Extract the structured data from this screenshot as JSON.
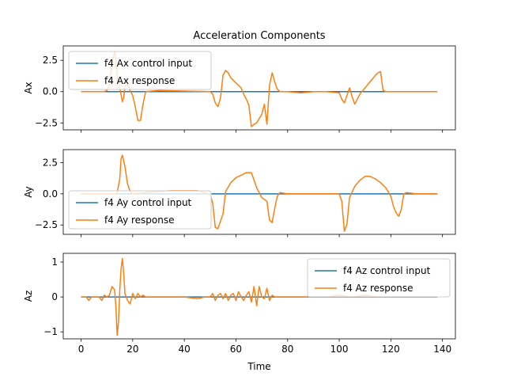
{
  "chart_data": {
    "type": "line",
    "title": "Acceleration Components",
    "xlabel": "Time",
    "xlim": [
      -6.9,
      145
    ],
    "xticks": [
      0,
      20,
      40,
      60,
      80,
      100,
      120,
      140
    ],
    "grid": false,
    "colors": {
      "control": "#1f77b4",
      "response": "#ff7f0e"
    },
    "panels": [
      {
        "ylabel": "Ax",
        "ylim": [
          -3.05,
          3.65
        ],
        "yticks": [
          2.5,
          0.0,
          -2.5
        ],
        "ytick_labels": [
          "2.5",
          "0.0",
          "−2.5"
        ],
        "legend_position": "upper-left",
        "series": [
          {
            "name": "f4 Ax control input",
            "x": [
              0,
              138
            ],
            "y": [
              0,
              0
            ]
          },
          {
            "name": "f4 Ax response",
            "x": [
              0,
              5,
              9,
              10,
              11,
              12,
              13,
              13.5,
              14,
              15,
              16,
              16.5,
              17,
              18,
              19,
              20,
              21,
              22,
              23,
              24,
              25,
              30,
              40,
              50,
              51,
              52,
              53,
              54,
              55,
              56,
              57,
              58,
              60,
              62,
              63,
              64,
              65,
              66,
              67,
              68,
              70,
              71,
              72,
              73,
              74,
              75,
              76,
              77,
              80,
              85,
              90,
              95,
              100,
              101,
              102,
              103,
              104,
              105,
              106,
              107,
              108,
              110,
              112,
              114,
              115,
              116,
              116.5,
              117,
              118,
              120,
              125,
              130,
              135,
              138
            ],
            "y": [
              0,
              0,
              0,
              0.1,
              0.5,
              2.2,
              3.2,
              2.6,
              1.2,
              0.3,
              -0.8,
              -0.5,
              0.4,
              0.6,
              0.1,
              -0.3,
              -1.2,
              -2.3,
              -2.3,
              -1.0,
              0.0,
              0.1,
              0.05,
              0.0,
              -0.2,
              -0.9,
              -1.2,
              -0.5,
              1.3,
              1.7,
              1.5,
              1.1,
              0.7,
              0.3,
              -0.2,
              -0.6,
              -1.1,
              -2.8,
              -2.6,
              -2.5,
              -1.8,
              -1.0,
              -2.6,
              0.5,
              1.5,
              0.8,
              0.2,
              0.0,
              0.0,
              -0.1,
              0.0,
              0.0,
              -0.1,
              -0.6,
              -0.9,
              -0.3,
              0.3,
              -0.4,
              -1.0,
              -0.6,
              -0.2,
              0.3,
              0.8,
              1.3,
              1.5,
              1.6,
              0.8,
              0.1,
              0.0,
              0.0,
              0.0,
              0.0,
              0.0,
              0.0
            ]
          }
        ]
      },
      {
        "ylabel": "Ay",
        "ylim": [
          -3.25,
          3.55
        ],
        "yticks": [
          2.5,
          0.0,
          -2.5
        ],
        "ytick_labels": [
          "2.5",
          "0.0",
          "−2.5"
        ],
        "legend_position": "lower-left",
        "series": [
          {
            "name": "f4 Ay control input",
            "x": [
              0,
              138
            ],
            "y": [
              0,
              0
            ]
          },
          {
            "name": "f4 Ay response",
            "x": [
              0,
              5,
              10,
              13,
              14,
              15,
              15.5,
              16,
              17,
              18,
              19,
              20,
              22,
              25,
              30,
              35,
              40,
              45,
              48,
              50,
              51,
              52,
              53,
              54,
              55,
              56,
              58,
              60,
              62,
              64,
              66,
              68,
              70,
              72,
              73,
              74,
              75,
              76,
              77,
              80,
              90,
              100,
              101,
              102,
              103,
              104,
              106,
              108,
              110,
              112,
              114,
              116,
              118,
              120,
              121,
              122,
              123,
              124,
              125,
              126,
              130,
              138
            ],
            "y": [
              0,
              0,
              0,
              0,
              0.1,
              1.2,
              2.8,
              3.1,
              2.2,
              0.8,
              0.2,
              0.0,
              0.05,
              0.1,
              0.2,
              0.25,
              0.25,
              0.25,
              0.1,
              0.0,
              -0.8,
              -2.7,
              -2.8,
              -2.2,
              -1.6,
              0.2,
              0.9,
              1.3,
              1.5,
              1.7,
              1.7,
              0.5,
              -0.3,
              -0.6,
              -2.1,
              -2.3,
              -1.2,
              -0.2,
              0.1,
              0.0,
              0.0,
              0.0,
              -0.6,
              -3.0,
              -2.4,
              -0.3,
              0.6,
              1.1,
              1.4,
              1.4,
              1.2,
              0.9,
              0.5,
              -0.2,
              -1.0,
              -1.5,
              -1.8,
              -1.3,
              0.0,
              0.1,
              0.0,
              0.0
            ]
          }
        ]
      },
      {
        "ylabel": "Az",
        "ylim": [
          -1.2,
          1.25
        ],
        "yticks": [
          1,
          0,
          -1
        ],
        "ytick_labels": [
          "1",
          "0",
          "−1"
        ],
        "legend_position": "upper-right",
        "series": [
          {
            "name": "f4 Az control input",
            "x": [
              0,
              138
            ],
            "y": [
              0,
              0
            ]
          },
          {
            "name": "f4 Az response",
            "x": [
              0,
              2,
              3,
              4,
              5,
              7,
              8,
              9,
              10,
              11,
              12,
              13,
              13.5,
              14,
              14.5,
              15,
              15.5,
              16,
              16.5,
              17,
              18,
              19,
              20,
              21,
              22,
              23,
              24,
              25,
              30,
              40,
              45,
              48,
              50,
              51,
              52,
              53,
              54,
              55,
              56,
              57,
              58,
              59,
              60,
              61,
              62,
              63,
              64,
              65,
              66,
              67,
              68,
              69,
              70,
              71,
              72,
              73,
              74,
              75,
              80,
              90,
              95,
              100,
              105,
              110,
              115,
              120,
              125,
              130,
              138
            ],
            "y": [
              0,
              0,
              -0.1,
              0,
              0,
              0,
              -0.1,
              0.05,
              0,
              0.05,
              0.3,
              0.2,
              -0.3,
              -1.1,
              -0.7,
              0.2,
              0.8,
              1.1,
              0.7,
              0.1,
              -0.1,
              -0.2,
              0.1,
              -0.05,
              0.1,
              0,
              0.05,
              0,
              0,
              0,
              -0.05,
              0,
              0,
              0.1,
              -0.1,
              0.05,
              0.1,
              -0.05,
              0.1,
              -0.1,
              0.05,
              0.1,
              -0.1,
              0.15,
              0,
              -0.1,
              0.05,
              0.15,
              -0.15,
              0.3,
              -0.25,
              0.3,
              0,
              -0.05,
              0.25,
              -0.1,
              0.05,
              0,
              0,
              0,
              0,
              0.05,
              0,
              0.05,
              0,
              0,
              0,
              0,
              0
            ]
          }
        ]
      }
    ]
  }
}
